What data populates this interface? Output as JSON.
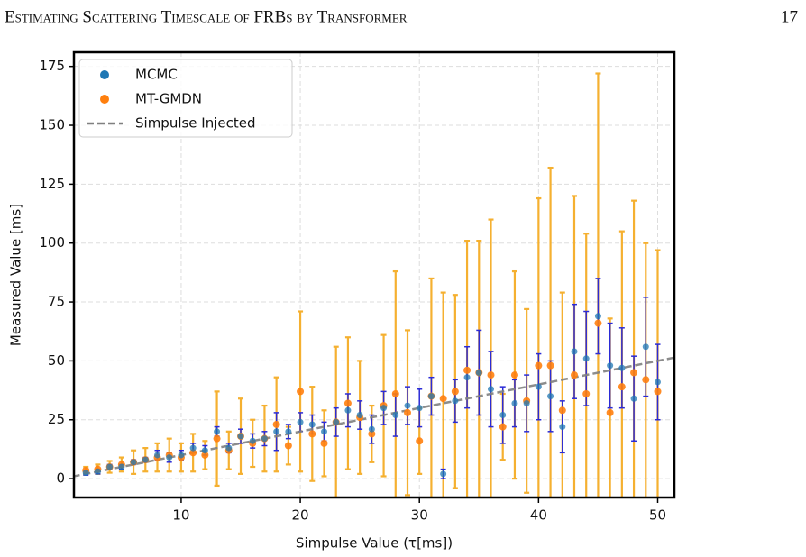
{
  "header": {
    "title": "Estimating Scattering Timescale of FRBs by Transformer",
    "page_number": "17"
  },
  "chart_data": {
    "type": "errorbar",
    "xlabel": "Simpulse Value (τ[ms])",
    "ylabel": "Measured Value [ms]",
    "xlim": [
      1,
      51.4
    ],
    "ylim": [
      -8,
      181
    ],
    "xticks": [
      10,
      20,
      30,
      40,
      50
    ],
    "yticks": [
      0,
      25,
      50,
      75,
      100,
      125,
      150,
      175
    ],
    "grid": true,
    "legend": "upper left",
    "x": [
      2,
      3,
      4,
      5,
      6,
      7,
      8,
      9,
      10,
      11,
      12,
      13,
      14,
      15,
      16,
      17,
      18,
      19,
      20,
      21,
      22,
      23,
      24,
      25,
      26,
      27,
      28,
      29,
      30,
      31,
      32,
      33,
      34,
      35,
      36,
      37,
      38,
      39,
      40,
      41,
      42,
      43,
      44,
      45,
      46,
      47,
      48,
      49,
      50
    ],
    "series": [
      {
        "name": "MCMC",
        "color": "#1f77b4",
        "error_color": "#2b2bd6",
        "values": [
          2.5,
          3,
          5,
          5,
          7,
          8,
          10,
          9,
          10,
          13,
          12,
          20,
          13,
          18,
          16,
          17,
          20,
          20,
          24,
          23,
          20,
          24,
          29,
          27,
          21,
          30,
          27,
          31,
          30,
          35,
          2,
          33,
          43,
          45,
          38,
          27,
          32,
          32,
          39,
          35,
          22,
          54,
          51,
          69,
          48,
          47,
          34,
          56,
          41
        ],
        "errors": [
          1,
          1,
          1,
          1,
          1,
          1,
          2,
          2,
          2,
          2,
          2,
          2,
          2,
          3,
          3,
          3,
          8,
          3,
          4,
          4,
          4,
          6,
          7,
          6,
          6,
          7,
          9,
          8,
          8,
          8,
          2,
          9,
          13,
          18,
          16,
          12,
          10,
          12,
          14,
          15,
          11,
          20,
          20,
          16,
          18,
          17,
          18,
          21,
          16
        ]
      },
      {
        "name": "MT-GMDN",
        "color": "#ff7f0e",
        "error_color": "#f5b030",
        "values": [
          3.5,
          4,
          5,
          6,
          7,
          8,
          9,
          10,
          9,
          11,
          10,
          17,
          12,
          18,
          15,
          17,
          23,
          14,
          37,
          19,
          15,
          24,
          32,
          26,
          19,
          31,
          36,
          28,
          16,
          35,
          34,
          37,
          46,
          45,
          44,
          22,
          44,
          33,
          48,
          48,
          29,
          44,
          36,
          66,
          28,
          39,
          45,
          42,
          37
        ],
        "errors": [
          1.5,
          2,
          2.5,
          3,
          5,
          5,
          6,
          7,
          6,
          8,
          6,
          20,
          8,
          16,
          10,
          14,
          20,
          8,
          34,
          20,
          14,
          32,
          28,
          24,
          12,
          30,
          52,
          35,
          14,
          50,
          45,
          41,
          55,
          56,
          66,
          14,
          44,
          39,
          71,
          84,
          50,
          76,
          68,
          106,
          40,
          66,
          73,
          58,
          60
        ]
      },
      {
        "name": "Simpulse Injected",
        "type": "line",
        "linestyle": "dashed",
        "color": "#808080",
        "x": [
          0,
          52
        ],
        "values": [
          0,
          52
        ]
      }
    ]
  }
}
